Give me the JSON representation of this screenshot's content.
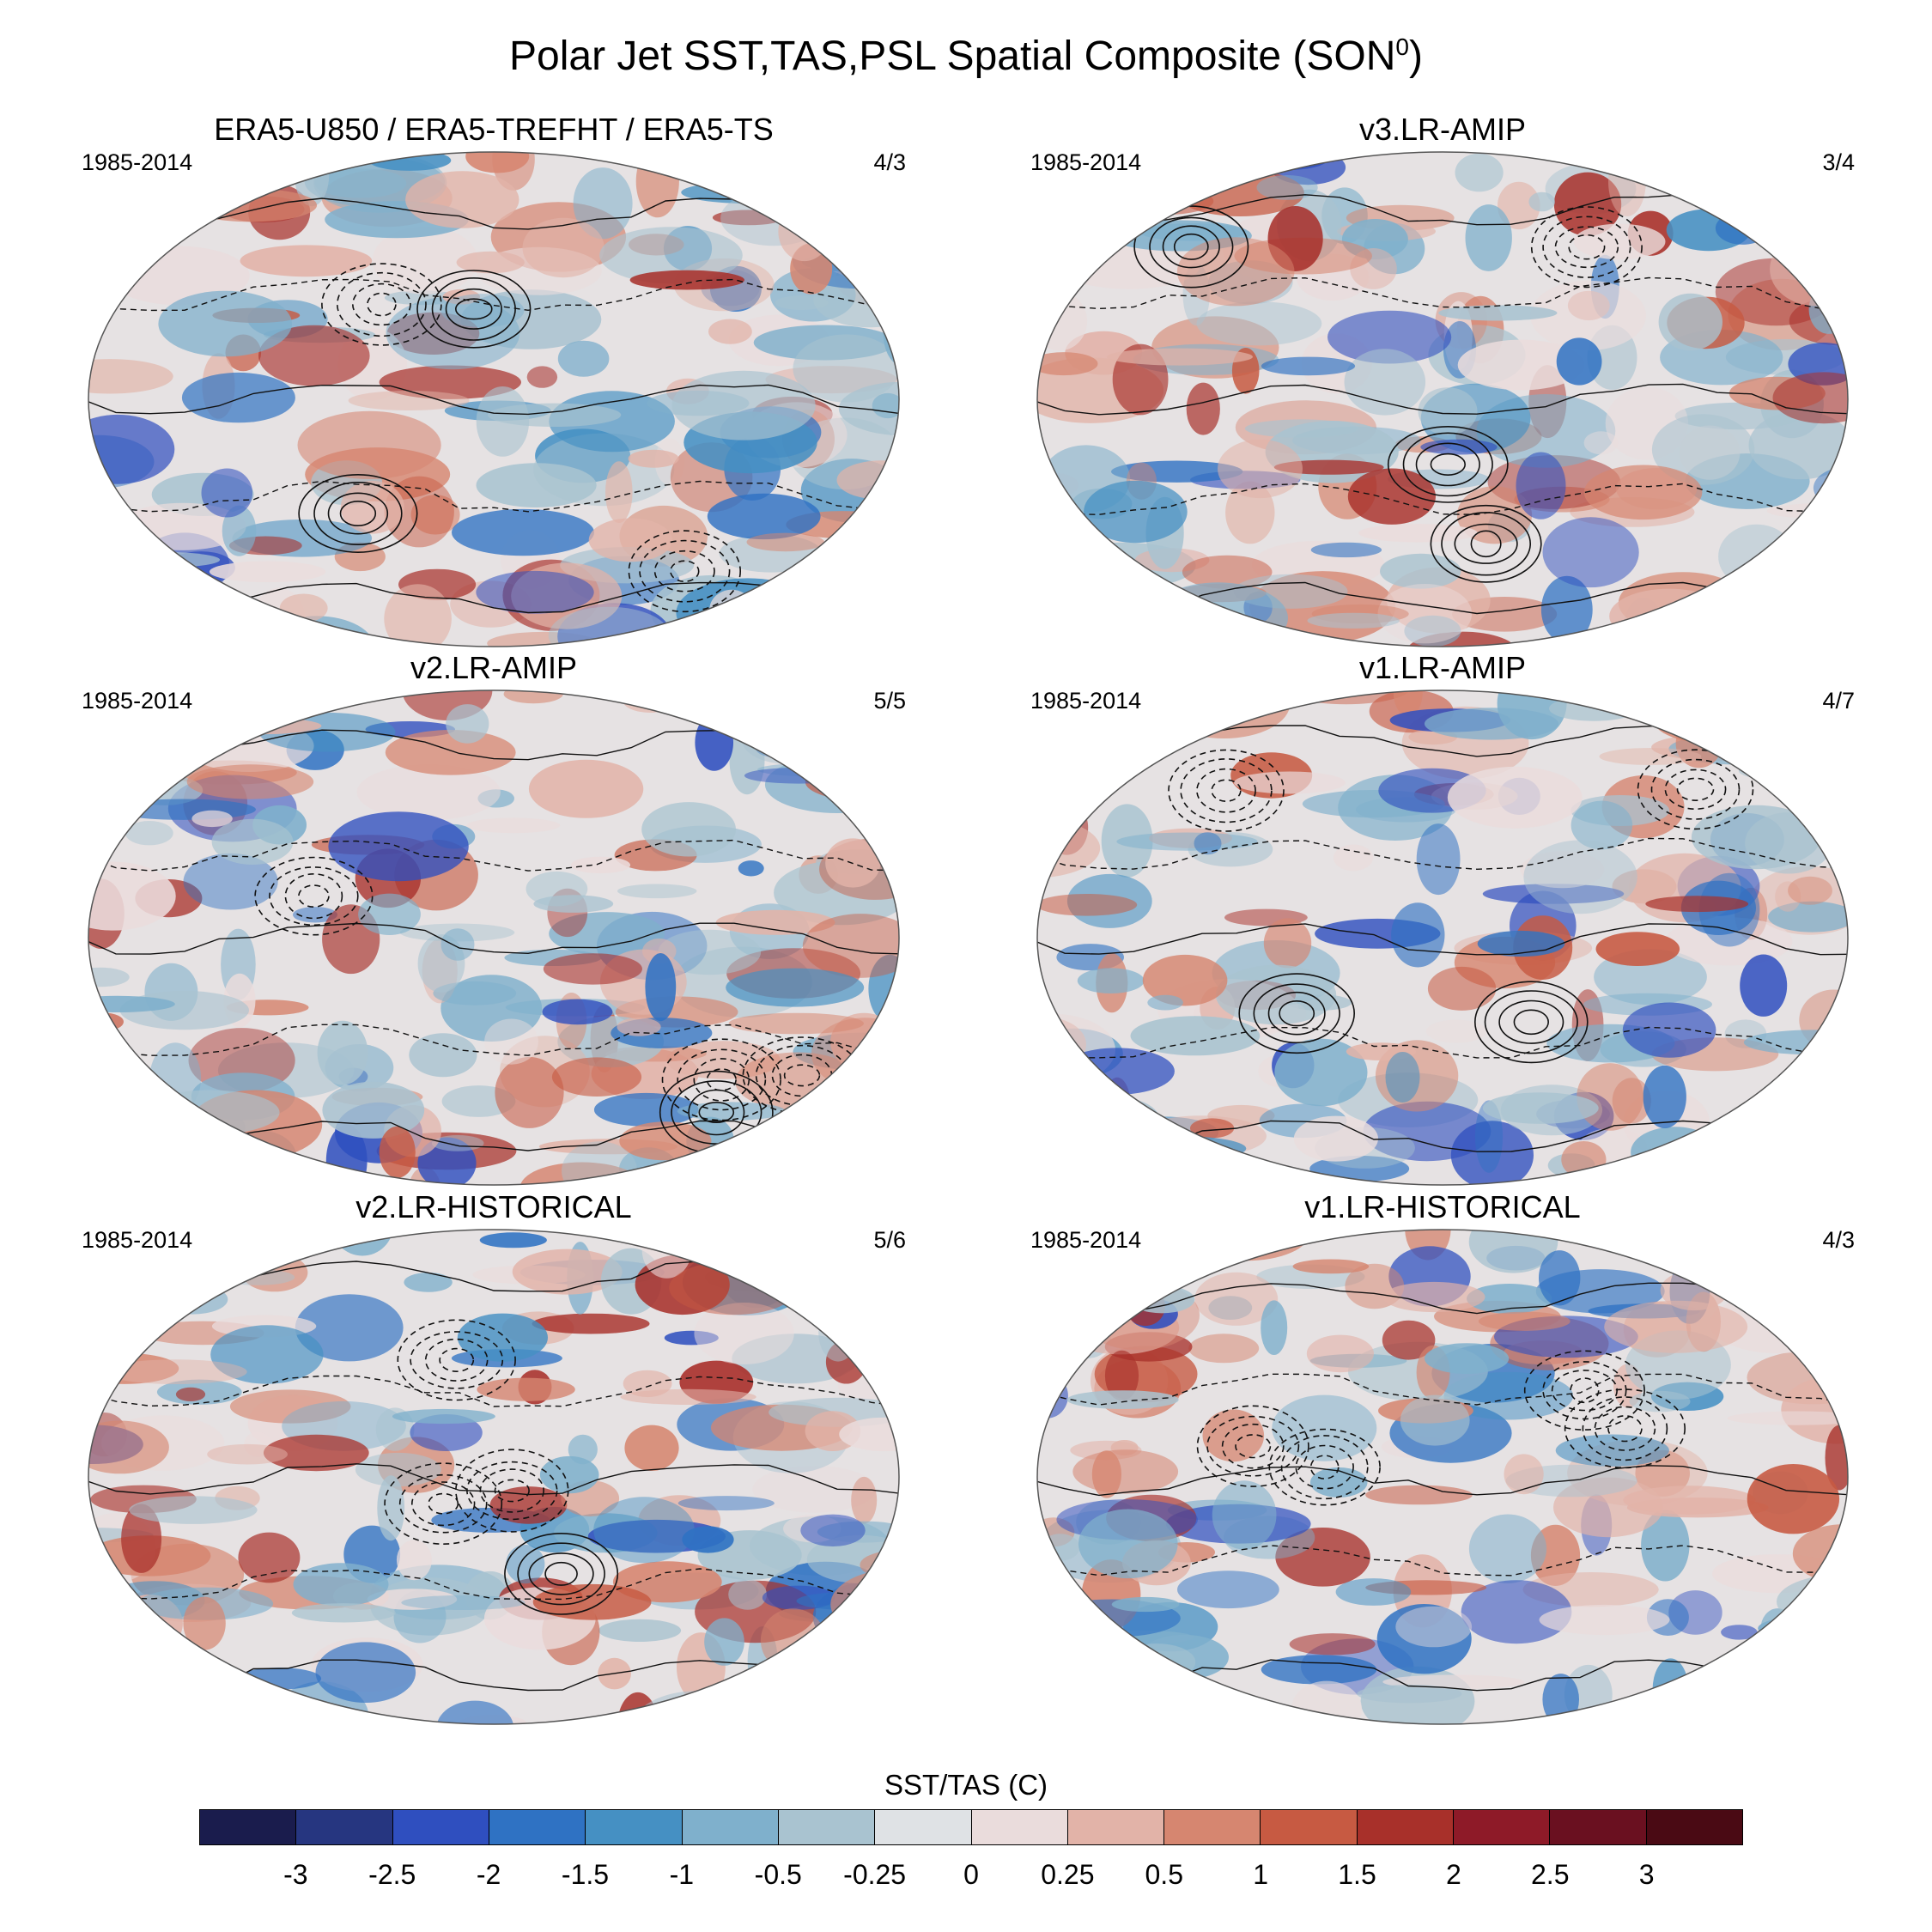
{
  "title": "Polar Jet SST,TAS,PSL Spatial Composite (SON",
  "title_sup": "0",
  "title_end": ")",
  "panels": [
    {
      "title": "ERA5-U850 / ERA5-TREFHT / ERA5-TS",
      "period": "1985-2014",
      "count": "4/3"
    },
    {
      "title": "v3.LR-AMIP",
      "period": "1985-2014",
      "count": "3/4"
    },
    {
      "title": "v2.LR-AMIP",
      "period": "1985-2014",
      "count": "5/5"
    },
    {
      "title": "v1.LR-AMIP",
      "period": "1985-2014",
      "count": "4/7"
    },
    {
      "title": "v2.LR-HISTORICAL",
      "period": "1985-2014",
      "count": "5/6"
    },
    {
      "title": "v1.LR-HISTORICAL",
      "period": "1985-2014",
      "count": "4/3"
    }
  ],
  "colorbar": {
    "title": "SST/TAS (C)",
    "labels": [
      "-3",
      "-2.5",
      "-2",
      "-1.5",
      "-1",
      "-0.5",
      "-0.25",
      "0",
      "0.25",
      "0.5",
      "1",
      "1.5",
      "2",
      "2.5",
      "3"
    ],
    "colors": [
      "#1a1c4d",
      "#263680",
      "#2f4fbf",
      "#2f72c3",
      "#4590c3",
      "#7fb0cc",
      "#a9c3d0",
      "#dfe2e5",
      "#eadcdc",
      "#e2b3a8",
      "#d68670",
      "#c75a42",
      "#a8302a",
      "#8e1a28",
      "#6a1020",
      "#4a0a14"
    ]
  },
  "map_palette": {
    "ocean_base": "#e6e2e3",
    "land_outline": "#222222",
    "ellipse_border": "#555555"
  }
}
